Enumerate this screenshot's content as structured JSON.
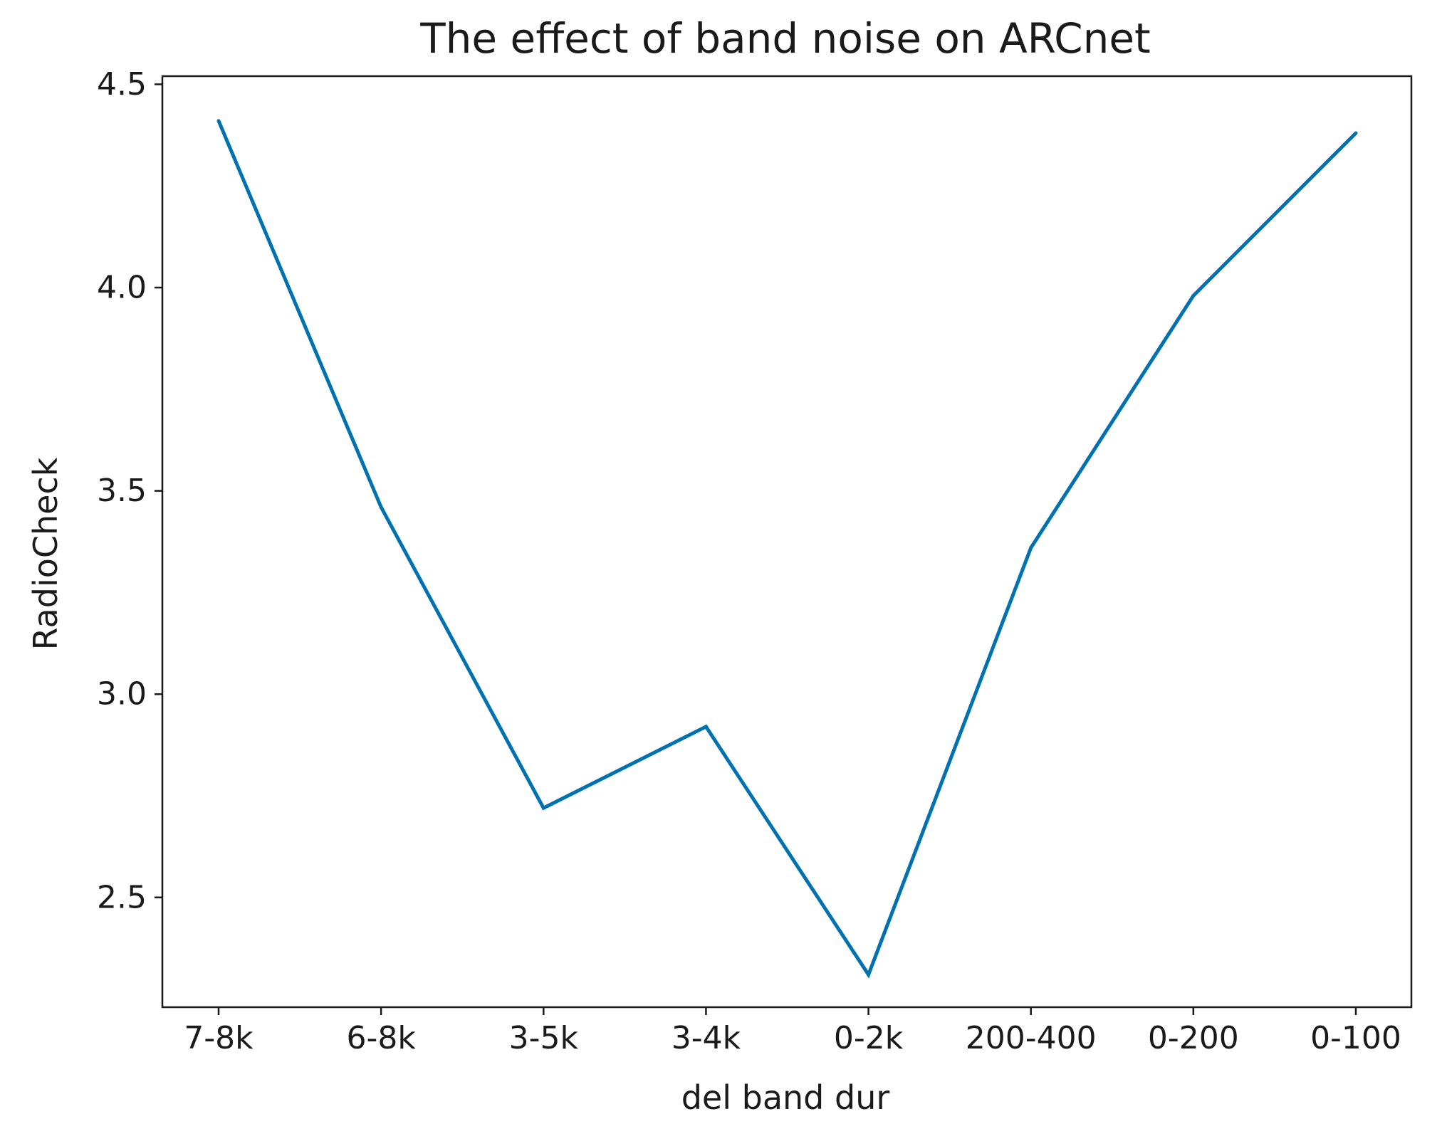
{
  "chart_data": {
    "type": "line",
    "title": "The effect of band noise on ARCnet",
    "xlabel": "del band dur",
    "ylabel": "RadioCheck",
    "categories": [
      "7-8k",
      "6-8k",
      "3-5k",
      "3-4k",
      "0-2k",
      "200-400",
      "0-200",
      "0-100"
    ],
    "series": [
      {
        "name": "RadioCheck",
        "color": "#0072b2",
        "values": [
          4.41,
          3.46,
          2.72,
          2.92,
          2.31,
          3.36,
          3.98,
          4.38
        ]
      }
    ],
    "ylim": [
      2.23,
      4.52
    ],
    "yticks": [
      2.5,
      3.0,
      3.5,
      4.0,
      4.5
    ],
    "ytick_labels": [
      "2.5",
      "3.0",
      "3.5",
      "4.0",
      "4.5"
    ],
    "grid": false,
    "legend": "none"
  }
}
